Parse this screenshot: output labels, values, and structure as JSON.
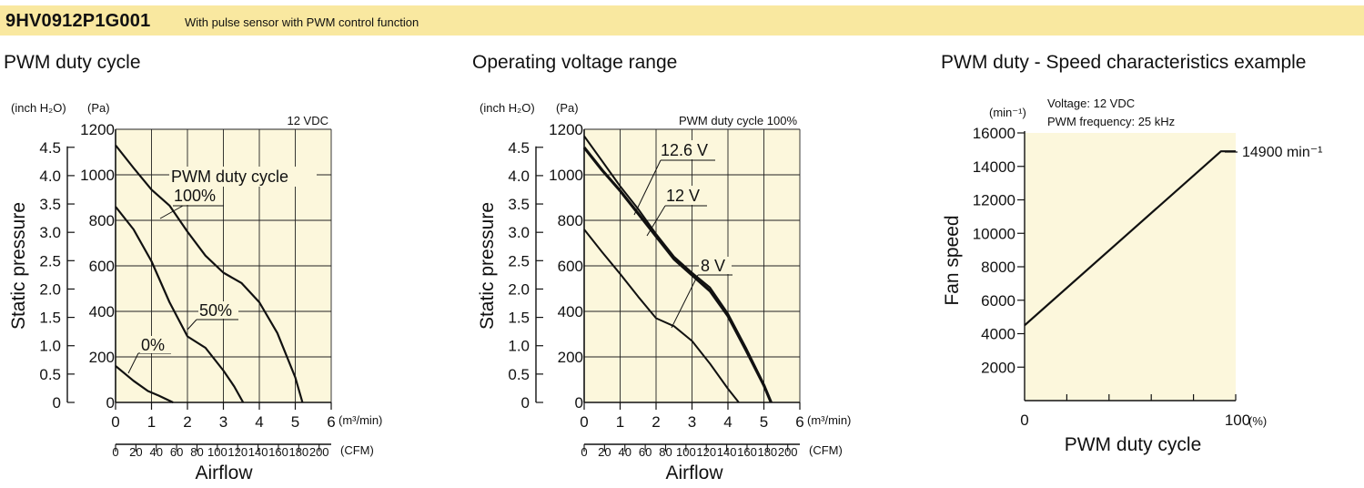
{
  "header": {
    "model": "9HV0912P1G001",
    "description": "With pulse sensor with PWM control function"
  },
  "chart_data": [
    {
      "type": "line",
      "title": "PWM duty cycle",
      "note": "12 VDC",
      "xlabel": "Airflow",
      "ylabel": "Static pressure",
      "x_unit": "(m³/min)",
      "x2_unit": "(CFM)",
      "y_unit": "(Pa)",
      "y2_unit": "(inch H₂O)",
      "xlim": [
        0,
        6
      ],
      "ylim": [
        0,
        1200
      ],
      "x_ticks": [
        "0",
        "1",
        "2",
        "3",
        "4",
        "5",
        "6"
      ],
      "x2_ticks": [
        "0",
        "20",
        "40",
        "60",
        "80",
        "100",
        "120",
        "140",
        "160",
        "180",
        "200"
      ],
      "y_ticks": [
        "0",
        "200",
        "400",
        "600",
        "800",
        "1000",
        "1200"
      ],
      "y2_ticks": [
        "0",
        "0.5",
        "1.0",
        "1.5",
        "2.0",
        "2.5",
        "3.0",
        "3.5",
        "4.0",
        "4.5"
      ],
      "legend_title": "PWM duty cycle",
      "grid": true,
      "series": [
        {
          "name": "100%",
          "x": [
            0,
            0.5,
            1,
            1.5,
            2,
            2.5,
            3,
            3.5,
            4,
            4.5,
            5,
            5.2
          ],
          "y": [
            1130,
            1030,
            935,
            865,
            750,
            645,
            570,
            525,
            440,
            305,
            110,
            0
          ]
        },
        {
          "name": "50%",
          "x": [
            0,
            0.5,
            1,
            1.5,
            2,
            2.5,
            3,
            3.3,
            3.55
          ],
          "y": [
            860,
            760,
            620,
            440,
            290,
            240,
            140,
            70,
            0
          ]
        },
        {
          "name": "0%",
          "x": [
            0,
            0.5,
            0.9,
            1.2,
            1.6
          ],
          "y": [
            160,
            95,
            50,
            30,
            0
          ]
        }
      ]
    },
    {
      "type": "line",
      "title": "Operating voltage range",
      "note": "PWM duty cycle 100%",
      "xlabel": "Airflow",
      "ylabel": "Static pressure",
      "x_unit": "(m³/min)",
      "x2_unit": "(CFM)",
      "y_unit": "(Pa)",
      "y2_unit": "(inch H₂O)",
      "xlim": [
        0,
        6
      ],
      "ylim": [
        0,
        1200
      ],
      "x_ticks": [
        "0",
        "1",
        "2",
        "3",
        "4",
        "5",
        "6"
      ],
      "x2_ticks": [
        "0",
        "20",
        "40",
        "60",
        "80",
        "100",
        "120",
        "140",
        "160",
        "180",
        "200"
      ],
      "y_ticks": [
        "0",
        "200",
        "400",
        "600",
        "800",
        "1000",
        "1200"
      ],
      "y2_ticks": [
        "0",
        "0.5",
        "1.0",
        "1.5",
        "2.0",
        "2.5",
        "3.0",
        "3.5",
        "4.0",
        "4.5"
      ],
      "grid": true,
      "series": [
        {
          "name": "12.6 V",
          "x": [
            0,
            0.5,
            1,
            1.5,
            2,
            2.5,
            3,
            3.5,
            4,
            4.5,
            5,
            5.2
          ],
          "y": [
            1170,
            1060,
            950,
            850,
            740,
            640,
            570,
            505,
            390,
            240,
            80,
            0
          ]
        },
        {
          "name": "12 V",
          "x": [
            0,
            0.5,
            1,
            1.5,
            2,
            2.5,
            3,
            3.5,
            4,
            4.5,
            5,
            5.2
          ],
          "y": [
            1120,
            1020,
            930,
            830,
            730,
            630,
            560,
            490,
            380,
            230,
            75,
            0
          ]
        },
        {
          "name": "8 V",
          "x": [
            0,
            0.5,
            1,
            1.5,
            2,
            2.5,
            3,
            3.5,
            4,
            4.3
          ],
          "y": [
            760,
            660,
            565,
            465,
            370,
            335,
            270,
            170,
            60,
            0
          ]
        }
      ]
    },
    {
      "type": "line",
      "title": "PWM duty - Speed characteristics example",
      "note_lines": [
        "Voltage: 12 VDC",
        "PWM frequency: 25 kHz"
      ],
      "xlabel": "PWM duty cycle",
      "ylabel": "Fan speed",
      "x_unit": "(%)",
      "y_unit": "(min⁻¹)",
      "xlim": [
        0,
        100
      ],
      "ylim": [
        0,
        16000
      ],
      "x_ticks": [
        "0",
        "100"
      ],
      "y_ticks": [
        "2000",
        "4000",
        "6000",
        "8000",
        "10000",
        "12000",
        "14000",
        "16000"
      ],
      "grid": false,
      "series": [
        {
          "x": [
            0,
            93,
            100
          ],
          "y": [
            4500,
            14900,
            14900
          ]
        }
      ],
      "annotation": "14900 min⁻¹"
    }
  ]
}
